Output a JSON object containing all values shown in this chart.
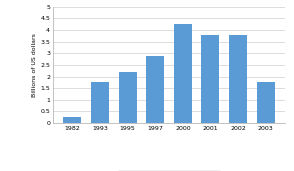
{
  "categories": [
    "1982",
    "1993",
    "1995",
    "1997",
    "2000",
    "2001",
    "2002",
    "2003"
  ],
  "values": [
    0.25,
    1.75,
    2.2,
    2.9,
    4.25,
    3.8,
    3.8,
    1.75
  ],
  "bar_color": "#5b9bd5",
  "ylabel": "Billions of US dollars",
  "ylim": [
    0,
    5
  ],
  "yticks": [
    0,
    0.5,
    1,
    1.5,
    2,
    2.5,
    3,
    3.5,
    4,
    4.5,
    5
  ],
  "ytick_labels": [
    "0",
    "0.5",
    "1",
    "1.5",
    "2",
    "2.5",
    "3",
    "3.5",
    "4",
    "4.5",
    "5"
  ],
  "background_color": "#ffffff",
  "grid_color": "#d0d0d0",
  "tick_fontsize": 4.5,
  "ylabel_fontsize": 4.5,
  "legend_fontsize": 4.2
}
